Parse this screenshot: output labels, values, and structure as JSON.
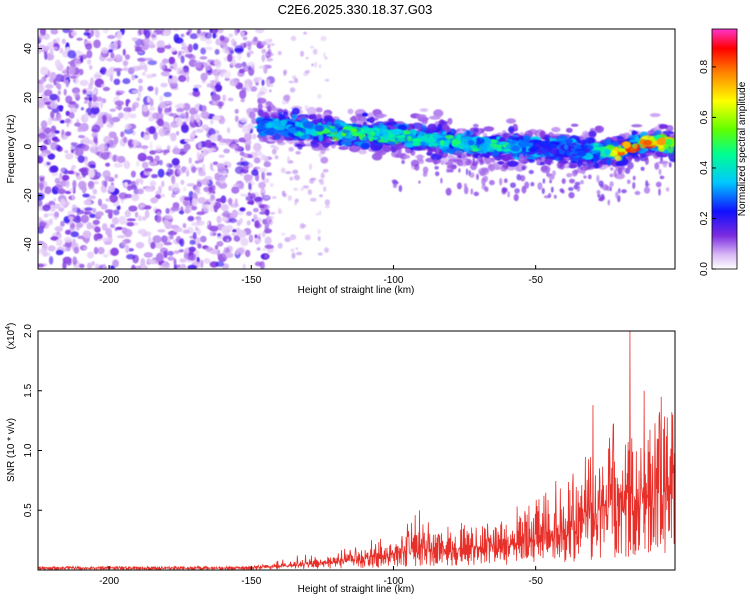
{
  "title": "C2E6.2025.330.18.37.G03",
  "chart_data": [
    {
      "type": "heatmap",
      "xlabel": "Height of straight line (km)",
      "ylabel": "Frequency (Hz)",
      "xlim": [
        -225,
        -1
      ],
      "ylim": [
        -50,
        48
      ],
      "xticks": [
        -200,
        -150,
        -100,
        -50
      ],
      "yticks": [
        -40,
        -20,
        0,
        20,
        40
      ],
      "colorbar": {
        "label": "Normalized spectral amplitude",
        "range": [
          0.0,
          0.95
        ],
        "ticks": [
          0.0,
          0.2,
          0.4,
          0.6,
          0.8
        ]
      },
      "noise_region": {
        "x_range": [
          -225,
          -143
        ],
        "freq_range": [
          -50,
          48
        ],
        "amplitude": "low"
      },
      "signal_ridge": {
        "x": [
          -145,
          -130,
          -120,
          -110,
          -100,
          -90,
          -80,
          -70,
          -60,
          -50,
          -40,
          -30,
          -20,
          -10,
          -2
        ],
        "freq": [
          9,
          7,
          6,
          5,
          4,
          3,
          2,
          1,
          0,
          -1,
          -1,
          -2,
          -2,
          2,
          1
        ],
        "amplitude": [
          0.35,
          0.45,
          0.55,
          0.5,
          0.5,
          0.45,
          0.5,
          0.45,
          0.5,
          0.3,
          0.3,
          0.35,
          0.85,
          0.85,
          0.7
        ]
      }
    },
    {
      "type": "line",
      "xlabel": "Height of straight line (km)",
      "ylabel": "SNR (10 * v/v)",
      "y_multiplier": "(x10",
      "y_multiplier_exp": "4",
      "y_multiplier_close": ")",
      "xlim": [
        -225,
        -1
      ],
      "ylim": [
        0,
        2.0
      ],
      "xticks": [
        -200,
        -150,
        -100,
        -50
      ],
      "yticks": [
        0.5,
        1.0,
        1.5,
        2.0
      ],
      "ytick_labels": [
        "0.5",
        "1.0",
        "1.5",
        "2.0"
      ],
      "color": "#e8302a",
      "envelope": {
        "x": [
          -225,
          -150,
          -140,
          -120,
          -100,
          -92,
          -85,
          -70,
          -55,
          -40,
          -30,
          -20,
          -15,
          -10,
          -5,
          -1
        ],
        "mean": [
          0.02,
          0.02,
          0.04,
          0.08,
          0.15,
          0.22,
          0.2,
          0.25,
          0.3,
          0.4,
          0.55,
          0.7,
          0.75,
          0.8,
          0.85,
          1.1
        ],
        "peak": [
          0.03,
          0.03,
          0.1,
          0.18,
          0.3,
          0.5,
          0.35,
          0.45,
          0.55,
          0.8,
          1.0,
          1.35,
          2.0,
          1.5,
          1.5,
          1.25
        ]
      }
    }
  ]
}
